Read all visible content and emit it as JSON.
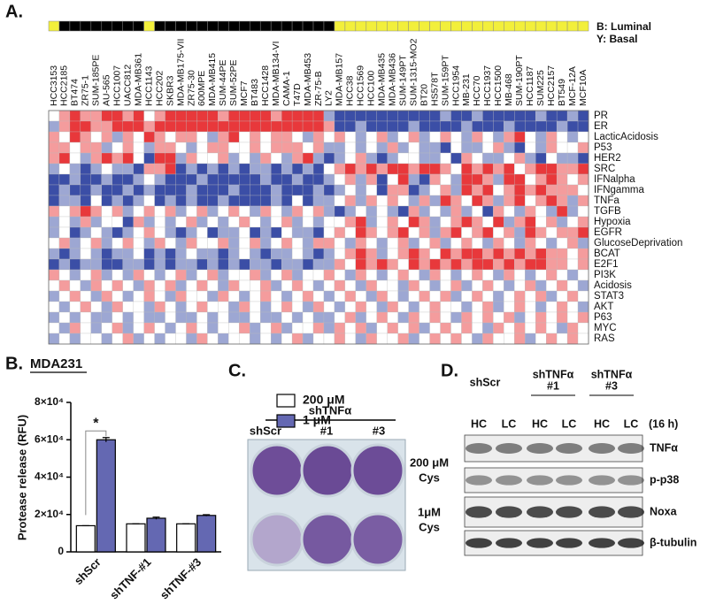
{
  "panel_labels": [
    "A.",
    "B.",
    "C.",
    "D."
  ],
  "chart_data": [
    {
      "type": "heatmap",
      "x": [
        "HCC3153",
        "HCC2185",
        "BT474",
        "ZR75-1",
        "SUM-185PE",
        "AU-565",
        "HCC1007",
        "UACC812",
        "MDA-MB361",
        "HCC1143",
        "HCC202",
        "SKBR3",
        "MDA-MB175-VII",
        "ZR75-30",
        "600MPE",
        "MDA-MB415",
        "SUM-44PE",
        "SUM-52PE",
        "MCF7",
        "BT483",
        "HCC1428",
        "MDA-MB134-VI",
        "CAMA-1",
        "T47D",
        "MDA-MB453",
        "ZR-75-B",
        "LY2",
        "MDA-MB157",
        "HCC38",
        "HCC1569",
        "HCC100",
        "MDA-MB435",
        "MDA-MB436",
        "SUM-149PT",
        "SUM-1315-MO2",
        "BT20",
        "HS578T",
        "SUM-159PT",
        "HCC1954",
        "MB-231",
        "HCC70",
        "HCC1937",
        "HCC1500",
        "MB-468",
        "SUM-190PT",
        "HCC1187",
        "SUM225",
        "HCC2157",
        "BT549",
        "MCF-12A",
        "MCF10A"
      ],
      "y": [
        "PR",
        "ER",
        "LacticAcidosis",
        "P53",
        "HER2",
        "SRC",
        "IFNalpha",
        "IFNgamma",
        "TNFa",
        "TGFB",
        "Hypoxia",
        "EGFR",
        "GlucoseDeprivation",
        "BCAT",
        "E2F1",
        "PI3K",
        "Acidosis",
        "STAT3",
        "AKT",
        "P63",
        "MYC",
        "RAS"
      ],
      "values": [
        [
          0,
          1,
          2,
          1,
          1,
          2,
          2,
          1,
          2,
          0,
          1,
          2,
          2,
          2,
          2,
          2,
          1,
          2,
          2,
          2,
          2,
          1,
          2,
          2,
          2,
          2,
          -1,
          -2,
          -2,
          -2,
          -2,
          -2,
          -2,
          -2,
          -2,
          -2,
          -2,
          -1,
          -2,
          -2,
          -1,
          -2,
          -2,
          -2,
          -2,
          -2,
          -1,
          -2,
          -2,
          -1,
          -2
        ],
        [
          -1,
          1,
          2,
          2,
          1,
          1,
          2,
          2,
          2,
          1,
          2,
          2,
          2,
          2,
          2,
          2,
          2,
          2,
          2,
          2,
          2,
          2,
          2,
          2,
          2,
          2,
          1,
          -2,
          -2,
          -1,
          -2,
          -2,
          -2,
          -2,
          -1,
          -2,
          -2,
          -2,
          -2,
          -1,
          -2,
          -2,
          -2,
          -1,
          -2,
          -2,
          -2,
          -2,
          -1,
          -2,
          -2
        ],
        [
          1,
          0,
          2,
          1,
          0,
          1,
          -1,
          1,
          0,
          2,
          1,
          0,
          1,
          1,
          0,
          -1,
          1,
          2,
          0,
          1,
          0,
          1,
          1,
          0,
          -1,
          1,
          0,
          1,
          0,
          -1,
          0,
          1,
          -1,
          0,
          1,
          -1,
          0,
          1,
          0,
          -1,
          1,
          0,
          -1,
          1,
          2,
          0,
          -1,
          1,
          0,
          -1,
          0
        ],
        [
          1,
          1,
          0,
          1,
          1,
          -1,
          0,
          1,
          0,
          -1,
          1,
          1,
          0,
          -1,
          0,
          1,
          1,
          0,
          0,
          1,
          0,
          1,
          1,
          1,
          0,
          1,
          -1,
          -1,
          0,
          -1,
          0,
          -1,
          1,
          -1,
          0,
          -1,
          -1,
          -2,
          0,
          -1,
          -1,
          0,
          1,
          -1,
          -2,
          0,
          -1,
          1,
          0,
          0,
          1
        ],
        [
          1,
          2,
          0,
          -1,
          1,
          2,
          1,
          2,
          0,
          -2,
          2,
          2,
          -1,
          1,
          0,
          0,
          1,
          -1,
          0,
          -1,
          1,
          0,
          -1,
          1,
          2,
          -1,
          -2,
          -1,
          0,
          1,
          -1,
          -2,
          -1,
          0,
          0,
          -1,
          -1,
          0,
          -2,
          1,
          0,
          -1,
          -1,
          0,
          1,
          -1,
          -2,
          0,
          -1,
          -1,
          -2
        ],
        [
          -1,
          0,
          -1,
          -2,
          -1,
          0,
          -1,
          -1,
          -2,
          1,
          1,
          2,
          -2,
          -1,
          -2,
          -1,
          -2,
          -1,
          -2,
          -1,
          -1,
          -2,
          -1,
          -2,
          -1,
          -2,
          0,
          1,
          2,
          1,
          2,
          1,
          2,
          2,
          1,
          2,
          2,
          1,
          0,
          2,
          1,
          2,
          1,
          2,
          0,
          1,
          2,
          2,
          1,
          1,
          2
        ],
        [
          -2,
          -2,
          -1,
          -2,
          -2,
          -1,
          -2,
          -2,
          -1,
          0,
          -1,
          -2,
          -2,
          -2,
          -1,
          -2,
          -2,
          -2,
          -2,
          -2,
          -1,
          -2,
          -2,
          -1,
          -2,
          -2,
          -1,
          0,
          1,
          -1,
          1,
          -2,
          0,
          2,
          -1,
          -2,
          1,
          0,
          -1,
          2,
          2,
          1,
          -1,
          2,
          2,
          0,
          1,
          2,
          1,
          0,
          1
        ],
        [
          -2,
          -1,
          -2,
          -2,
          -1,
          -2,
          -2,
          -1,
          -2,
          -1,
          -2,
          -2,
          -2,
          -1,
          -2,
          -2,
          -2,
          -1,
          -2,
          -2,
          -2,
          -1,
          -2,
          -2,
          -2,
          -1,
          -2,
          -1,
          0,
          -1,
          0,
          -2,
          1,
          1,
          -2,
          -1,
          0,
          1,
          -1,
          2,
          1,
          2,
          0,
          1,
          2,
          1,
          2,
          1,
          1,
          1,
          0
        ],
        [
          -2,
          -1,
          -1,
          -2,
          0,
          -2,
          -1,
          -2,
          -1,
          0,
          -2,
          -1,
          -2,
          -1,
          -2,
          -2,
          -1,
          -2,
          -2,
          -2,
          -2,
          -1,
          -2,
          0,
          -2,
          -1,
          -1,
          0,
          1,
          -1,
          1,
          0,
          1,
          0,
          -1,
          1,
          -1,
          2,
          1,
          0,
          2,
          1,
          -1,
          1,
          2,
          0,
          1,
          2,
          1,
          -1,
          1
        ],
        [
          1,
          0,
          1,
          2,
          1,
          0,
          1,
          -1,
          0,
          1,
          0,
          1,
          -1,
          0,
          1,
          -1,
          0,
          1,
          0,
          -1,
          1,
          0,
          -1,
          1,
          0,
          1,
          -1,
          -2,
          -1,
          0,
          -1,
          0,
          -1,
          -2,
          1,
          -1,
          0,
          -1,
          1,
          -1,
          0,
          -2,
          1,
          0,
          -1,
          1,
          0,
          -1,
          2,
          -1,
          0
        ],
        [
          -1,
          0,
          -1,
          1,
          -1,
          0,
          0,
          -2,
          1,
          -1,
          0,
          -1,
          0,
          1,
          -1,
          0,
          -1,
          0,
          1,
          0,
          -1,
          0,
          1,
          -1,
          0,
          -1,
          0,
          0,
          1,
          2,
          -1,
          0,
          1,
          0,
          2,
          1,
          -1,
          0,
          1,
          2,
          1,
          0,
          2,
          -1,
          1,
          2,
          0,
          1,
          -1,
          0,
          1
        ],
        [
          -1,
          0,
          -2,
          -1,
          0,
          -1,
          -2,
          -1,
          0,
          1,
          0,
          -1,
          -2,
          -1,
          0,
          -2,
          -1,
          -1,
          0,
          -2,
          -1,
          -2,
          0,
          -1,
          -1,
          -2,
          0,
          1,
          0,
          2,
          1,
          0,
          1,
          2,
          0,
          1,
          -1,
          1,
          2,
          0,
          1,
          2,
          0,
          1,
          -1,
          2,
          1,
          0,
          1,
          1,
          2
        ],
        [
          0,
          1,
          -1,
          0,
          1,
          -1,
          0,
          1,
          0,
          -1,
          1,
          0,
          -1,
          1,
          0,
          0,
          1,
          -1,
          0,
          1,
          -1,
          0,
          1,
          0,
          -1,
          1,
          1,
          0,
          -1,
          1,
          0,
          -1,
          0,
          1,
          -1,
          0,
          1,
          -1,
          0,
          1,
          0,
          -1,
          1,
          0,
          -1,
          1,
          0,
          -1,
          0,
          1,
          -1
        ],
        [
          -1,
          -2,
          -1,
          0,
          -1,
          -2,
          -1,
          -1,
          0,
          -2,
          -1,
          -2,
          -1,
          0,
          -1,
          -1,
          -2,
          -1,
          0,
          -1,
          -2,
          -1,
          -1,
          0,
          -1,
          -2,
          -1,
          0,
          1,
          2,
          1,
          -1,
          0,
          1,
          2,
          1,
          0,
          2,
          1,
          2,
          2,
          1,
          2,
          1,
          2,
          1,
          2,
          1,
          1,
          0,
          1
        ],
        [
          -2,
          -1,
          -2,
          -1,
          -1,
          -2,
          -2,
          -1,
          -1,
          -2,
          -1,
          -2,
          -1,
          -1,
          -2,
          -1,
          -2,
          -1,
          -2,
          -1,
          -1,
          -2,
          -1,
          -1,
          -2,
          -1,
          -1,
          1,
          0,
          2,
          1,
          2,
          1,
          0,
          2,
          1,
          2,
          1,
          2,
          1,
          2,
          2,
          1,
          2,
          1,
          2,
          2,
          1,
          1,
          0,
          1
        ],
        [
          1,
          0,
          -1,
          0,
          1,
          -1,
          0,
          -1,
          1,
          0,
          -1,
          0,
          1,
          -1,
          0,
          1,
          -1,
          0,
          0,
          1,
          -1,
          0,
          1,
          -1,
          0,
          0,
          1,
          0,
          -1,
          1,
          0,
          -1,
          0,
          1,
          0,
          -1,
          1,
          0,
          -1,
          0,
          1,
          0,
          -1,
          1,
          0,
          -1,
          0,
          1,
          0,
          -1,
          0
        ],
        [
          0,
          1,
          0,
          -1,
          1,
          0,
          1,
          0,
          -1,
          1,
          0,
          1,
          -1,
          0,
          1,
          0,
          -1,
          1,
          0,
          0,
          1,
          -1,
          0,
          1,
          0,
          -1,
          0,
          1,
          0,
          -1,
          1,
          0,
          0,
          -1,
          1,
          0,
          -1,
          0,
          1,
          -1,
          0,
          1,
          0,
          -1,
          0,
          1,
          -1,
          0,
          1,
          0,
          -1
        ],
        [
          -1,
          0,
          1,
          0,
          -1,
          1,
          0,
          -1,
          0,
          1,
          0,
          -1,
          1,
          0,
          0,
          -1,
          1,
          0,
          -1,
          0,
          1,
          0,
          -1,
          0,
          1,
          0,
          -1,
          0,
          1,
          0,
          -1,
          1,
          0,
          -1,
          0,
          1,
          0,
          1,
          -1,
          0,
          1,
          0,
          -1,
          0,
          1,
          0,
          1,
          -1,
          0,
          1,
          0
        ],
        [
          0,
          -1,
          0,
          1,
          0,
          -1,
          1,
          0,
          0,
          -1,
          1,
          0,
          -1,
          0,
          1,
          0,
          0,
          -1,
          1,
          0,
          -1,
          0,
          1,
          0,
          -1,
          1,
          0,
          -1,
          0,
          1,
          0,
          -1,
          1,
          0,
          -1,
          0,
          1,
          0,
          0,
          -1,
          0,
          1,
          -1,
          0,
          1,
          0,
          -1,
          0,
          1,
          0,
          -1
        ],
        [
          -1,
          0,
          -1,
          0,
          -1,
          -1,
          0,
          -1,
          0,
          -1,
          -1,
          0,
          -1,
          -1,
          0,
          -1,
          0,
          -1,
          -1,
          0,
          -1,
          -1,
          0,
          -1,
          0,
          -1,
          -1,
          0,
          1,
          -1,
          0,
          1,
          0,
          -1,
          1,
          0,
          1,
          0,
          -1,
          1,
          0,
          1,
          0,
          1,
          -1,
          0,
          1,
          0,
          1,
          0,
          1
        ],
        [
          0,
          -1,
          1,
          0,
          -1,
          0,
          1,
          -1,
          0,
          1,
          0,
          -1,
          0,
          1,
          0,
          -1,
          0,
          0,
          1,
          -1,
          0,
          1,
          -1,
          0,
          0,
          1,
          -1,
          1,
          0,
          1,
          -1,
          0,
          1,
          0,
          1,
          -1,
          0,
          1,
          0,
          1,
          0,
          -1,
          1,
          0,
          1,
          0,
          1,
          0,
          -1,
          1,
          0
        ],
        [
          -1,
          0,
          -1,
          0,
          0,
          -1,
          0,
          1,
          -1,
          0,
          -1,
          0,
          0,
          -1,
          1,
          0,
          -1,
          0,
          0,
          -1,
          0,
          -1,
          0,
          1,
          -1,
          0,
          0,
          1,
          0,
          -1,
          1,
          0,
          0,
          1,
          -1,
          0,
          1,
          0,
          1,
          0,
          -1,
          1,
          0,
          0,
          1,
          -1,
          0,
          1,
          0,
          1,
          0
        ]
      ],
      "clim": [
        -2,
        2
      ],
      "low_color": "#3b4ea6",
      "mid_color": "#ffffff",
      "high_color": "#e8383b",
      "subtype": [
        1,
        0,
        0,
        0,
        0,
        0,
        0,
        0,
        0,
        1,
        0,
        0,
        0,
        0,
        0,
        0,
        0,
        0,
        0,
        0,
        0,
        0,
        0,
        0,
        0,
        0,
        0,
        1,
        1,
        1,
        1,
        1,
        1,
        1,
        1,
        1,
        1,
        1,
        1,
        1,
        1,
        1,
        1,
        1,
        1,
        1,
        1,
        1,
        1,
        1,
        1
      ],
      "subtype_colors": [
        "#000000",
        "#f2ef3b"
      ],
      "subtype_legend": [
        "B: Luminal",
        "Y: Basal"
      ]
    },
    {
      "type": "bar",
      "title": "MDA231",
      "y_label": "Protease release (RFU)",
      "categories": [
        "shScr",
        "shTNF-#1",
        "shTNF-#3"
      ],
      "series": [
        {
          "name": "200 μM",
          "color": "#ffffff",
          "values": [
            14000,
            15000,
            15000
          ],
          "errors": [
            0,
            0,
            0
          ]
        },
        {
          "name": "1 μM",
          "color": "#6468b2",
          "values": [
            60000,
            18000,
            19500
          ],
          "errors": [
            1200,
            600,
            400
          ]
        }
      ],
      "ylim": [
        0,
        80000
      ],
      "yticks": [
        0,
        {
          "value": 20000,
          "label": "2×10⁴"
        },
        {
          "value": 40000,
          "label": "4×10⁴"
        },
        {
          "value": 60000,
          "label": "6×10⁴"
        },
        {
          "value": 80000,
          "label": "8×10⁴"
        }
      ],
      "annotations": [
        "*"
      ]
    }
  ],
  "panel_c": {
    "group": "shTNFα",
    "columns": [
      "shScr",
      "#1",
      "#3"
    ],
    "rows": [
      [
        "200 μM",
        "Cys"
      ],
      [
        "1μM",
        "Cys"
      ]
    ]
  },
  "panel_d": {
    "groups": [
      [
        "shScr"
      ],
      [
        "shTNFα",
        "#1"
      ],
      [
        "shTNFα",
        "#3"
      ]
    ],
    "lanes": [
      "HC",
      "LC",
      "HC",
      "LC",
      "HC",
      "LC"
    ],
    "time": "(16 h)",
    "proteins": [
      "TNFα",
      "p-p38",
      "Noxa",
      "β-tubulin"
    ]
  }
}
